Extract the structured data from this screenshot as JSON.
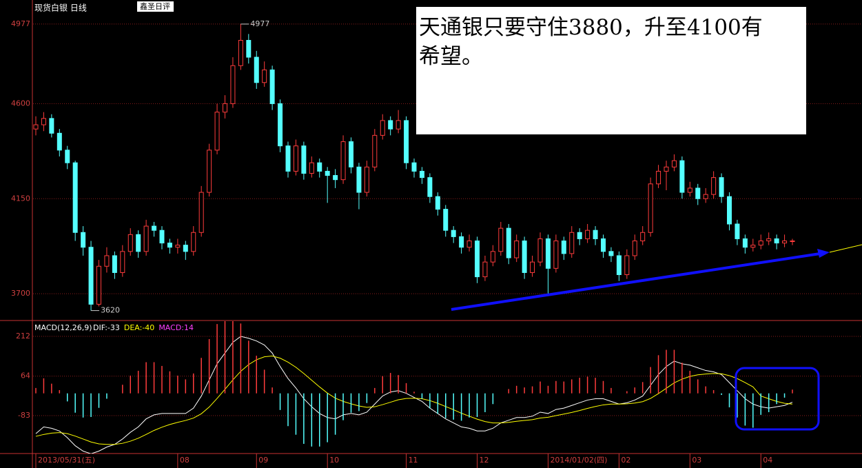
{
  "chart_data": {
    "type": "candlestick",
    "title": "现货白银  日线",
    "badge": "鑫圣日评",
    "note": [
      "天通银只要守住3880，升至4100有",
      "希望。"
    ],
    "categories": [
      "2013/05/31(五)",
      null,
      null,
      null,
      null,
      null,
      null,
      null,
      null,
      null,
      null,
      null,
      null,
      null,
      null,
      null,
      null,
      null,
      "08",
      null,
      null,
      null,
      null,
      null,
      null,
      null,
      null,
      null,
      "09",
      null,
      null,
      null,
      null,
      null,
      null,
      null,
      null,
      "10",
      null,
      null,
      null,
      null,
      null,
      null,
      null,
      null,
      null,
      "11",
      null,
      null,
      null,
      null,
      null,
      null,
      null,
      null,
      "12",
      null,
      null,
      null,
      null,
      null,
      null,
      null,
      null,
      "2014/01/02(四)",
      null,
      null,
      null,
      null,
      null,
      null,
      null,
      null,
      "02",
      null,
      null,
      null,
      null,
      null,
      null,
      null,
      null,
      "03",
      null,
      null,
      null,
      null,
      null,
      null,
      null,
      null,
      "04",
      null,
      null,
      null,
      null
    ],
    "ohlc": [
      [
        4480,
        4540,
        4450,
        4500
      ],
      [
        4500,
        4560,
        4470,
        4530
      ],
      [
        4530,
        4550,
        4440,
        4460
      ],
      [
        4460,
        4480,
        4350,
        4380
      ],
      [
        4380,
        4400,
        4290,
        4320
      ],
      [
        4320,
        4330,
        3950,
        3990
      ],
      [
        3990,
        4020,
        3880,
        3920
      ],
      [
        3920,
        3950,
        3620,
        3650
      ],
      [
        3650,
        3860,
        3640,
        3830
      ],
      [
        3830,
        3920,
        3800,
        3880
      ],
      [
        3880,
        3900,
        3770,
        3800
      ],
      [
        3800,
        3930,
        3780,
        3900
      ],
      [
        3900,
        4010,
        3880,
        3980
      ],
      [
        3980,
        4000,
        3870,
        3900
      ],
      [
        3900,
        4050,
        3880,
        4020
      ],
      [
        4020,
        4040,
        3970,
        4000
      ],
      [
        4000,
        4020,
        3910,
        3940
      ],
      [
        3940,
        3960,
        3890,
        3920
      ],
      [
        3920,
        3960,
        3890,
        3930
      ],
      [
        3930,
        3950,
        3860,
        3900
      ],
      [
        3900,
        4020,
        3880,
        3990
      ],
      [
        3990,
        4210,
        3970,
        4180
      ],
      [
        4180,
        4410,
        4160,
        4380
      ],
      [
        4380,
        4600,
        4360,
        4560
      ],
      [
        4560,
        4640,
        4530,
        4600
      ],
      [
        4600,
        4820,
        4580,
        4780
      ],
      [
        4780,
        4977,
        4760,
        4900
      ],
      [
        4900,
        4930,
        4790,
        4820
      ],
      [
        4820,
        4850,
        4670,
        4700
      ],
      [
        4700,
        4800,
        4680,
        4760
      ],
      [
        4760,
        4780,
        4570,
        4600
      ],
      [
        4600,
        4620,
        4370,
        4400
      ],
      [
        4400,
        4420,
        4250,
        4280
      ],
      [
        4280,
        4430,
        4260,
        4400
      ],
      [
        4400,
        4420,
        4240,
        4270
      ],
      [
        4270,
        4350,
        4250,
        4320
      ],
      [
        4320,
        4340,
        4250,
        4280
      ],
      [
        4280,
        4300,
        4130,
        4260
      ],
      [
        4260,
        4290,
        4200,
        4240
      ],
      [
        4240,
        4450,
        4220,
        4420
      ],
      [
        4420,
        4440,
        4270,
        4300
      ],
      [
        4300,
        4320,
        4100,
        4180
      ],
      [
        4180,
        4330,
        4160,
        4300
      ],
      [
        4300,
        4480,
        4280,
        4450
      ],
      [
        4450,
        4550,
        4430,
        4520
      ],
      [
        4520,
        4540,
        4450,
        4480
      ],
      [
        4480,
        4570,
        4460,
        4520
      ],
      [
        4520,
        4540,
        4290,
        4320
      ],
      [
        4320,
        4340,
        4250,
        4280
      ],
      [
        4280,
        4300,
        4220,
        4250
      ],
      [
        4250,
        4270,
        4130,
        4160
      ],
      [
        4160,
        4180,
        4070,
        4100
      ],
      [
        4100,
        4120,
        3970,
        4000
      ],
      [
        4000,
        4020,
        3940,
        3970
      ],
      [
        3970,
        3990,
        3890,
        3920
      ],
      [
        3920,
        3980,
        3900,
        3950
      ],
      [
        3950,
        3970,
        3750,
        3780
      ],
      [
        3780,
        3880,
        3760,
        3850
      ],
      [
        3850,
        3930,
        3830,
        3900
      ],
      [
        3900,
        4040,
        3880,
        4010
      ],
      [
        4010,
        4030,
        3840,
        3870
      ],
      [
        3870,
        3980,
        3850,
        3950
      ],
      [
        3950,
        3970,
        3770,
        3800
      ],
      [
        3800,
        3880,
        3780,
        3850
      ],
      [
        3850,
        3990,
        3830,
        3960
      ],
      [
        3960,
        3980,
        3700,
        3820
      ],
      [
        3820,
        3980,
        3800,
        3950
      ],
      [
        3950,
        3970,
        3860,
        3890
      ],
      [
        3890,
        4020,
        3870,
        3990
      ],
      [
        3990,
        4010,
        3930,
        3960
      ],
      [
        3960,
        4030,
        3940,
        4000
      ],
      [
        4000,
        4020,
        3930,
        3960
      ],
      [
        3960,
        3980,
        3870,
        3900
      ],
      [
        3900,
        3920,
        3850,
        3880
      ],
      [
        3880,
        3900,
        3760,
        3790
      ],
      [
        3790,
        3910,
        3770,
        3880
      ],
      [
        3880,
        3980,
        3860,
        3950
      ],
      [
        3950,
        4020,
        3930,
        3990
      ],
      [
        3990,
        4250,
        3970,
        4220
      ],
      [
        4220,
        4310,
        4200,
        4280
      ],
      [
        4280,
        4330,
        4190,
        4300
      ],
      [
        4300,
        4360,
        4280,
        4330
      ],
      [
        4330,
        4350,
        4150,
        4180
      ],
      [
        4180,
        4230,
        4160,
        4200
      ],
      [
        4200,
        4220,
        4120,
        4150
      ],
      [
        4150,
        4200,
        4130,
        4170
      ],
      [
        4170,
        4280,
        4150,
        4250
      ],
      [
        4250,
        4270,
        4130,
        4160
      ],
      [
        4160,
        4180,
        4000,
        4030
      ],
      [
        4030,
        4050,
        3930,
        3960
      ],
      [
        3960,
        3980,
        3890,
        3920
      ],
      [
        3920,
        3960,
        3900,
        3930
      ],
      [
        3930,
        3980,
        3910,
        3950
      ],
      [
        3950,
        3990,
        3930,
        3960
      ],
      [
        3960,
        3980,
        3910,
        3940
      ],
      [
        3940,
        3980,
        3920,
        3950
      ],
      [
        3950,
        3960,
        3930,
        3950
      ]
    ],
    "up_color": "#ff3c3c",
    "down_color": "#54ffff",
    "high_label": 4977,
    "low_label": 3620,
    "ylim": [
      3573,
      5091
    ],
    "yticks": [
      3700,
      4150,
      4600,
      4977
    ],
    "grid": true,
    "macd": {
      "title": "MACD(12,26,9)",
      "readout": [
        {
          "label": "DIF:-33",
          "value": -33,
          "color": "#ffffff"
        },
        {
          "label": "DEA:-40",
          "value": -40,
          "color": "#ffff00"
        },
        {
          "label": "MACD:14",
          "value": 14,
          "color": "#ff40ff"
        }
      ],
      "ylim": [
        -224,
        266
      ],
      "yticks": [
        -83,
        64,
        212
      ],
      "series": [
        {
          "name": "DIF",
          "color": "#ffffff",
          "values": [
            -150,
            -125,
            -130,
            -140,
            -165,
            -195,
            -215,
            -225,
            -215,
            -200,
            -190,
            -170,
            -145,
            -125,
            -95,
            -80,
            -75,
            -75,
            -75,
            -75,
            -55,
            -10,
            50,
            110,
            150,
            190,
            212,
            205,
            195,
            180,
            150,
            100,
            55,
            20,
            -20,
            -50,
            -75,
            -90,
            -95,
            -80,
            -75,
            -80,
            -70,
            -40,
            -10,
            5,
            10,
            0,
            -15,
            -30,
            -55,
            -75,
            -95,
            -110,
            -125,
            -130,
            -140,
            -140,
            -130,
            -110,
            -100,
            -90,
            -90,
            -85,
            -70,
            -75,
            -60,
            -55,
            -45,
            -35,
            -25,
            -20,
            -20,
            -30,
            -40,
            -35,
            -25,
            -10,
            30,
            70,
            100,
            120,
            110,
            105,
            95,
            85,
            80,
            70,
            40,
            10,
            -20,
            -40,
            -50,
            -55,
            -50,
            -45,
            -33
          ]
        },
        {
          "name": "DEA",
          "color": "#ffff00",
          "values": [
            -160,
            -153,
            -148,
            -146,
            -150,
            -159,
            -170,
            -181,
            -188,
            -190,
            -190,
            -186,
            -178,
            -167,
            -153,
            -138,
            -126,
            -116,
            -108,
            -101,
            -92,
            -76,
            -51,
            -19,
            15,
            50,
            82,
            107,
            125,
            136,
            139,
            131,
            116,
            97,
            74,
            49,
            24,
            1,
            -18,
            -30,
            -39,
            -47,
            -52,
            -50,
            -42,
            -33,
            -24,
            -19,
            -18,
            -20,
            -27,
            -37,
            -49,
            -61,
            -74,
            -85,
            -96,
            -105,
            -110,
            -110,
            -108,
            -104,
            -101,
            -98,
            -92,
            -89,
            -83,
            -77,
            -71,
            -64,
            -56,
            -49,
            -43,
            -40,
            -40,
            -39,
            -36,
            -31,
            -19,
            -1,
            19,
            39,
            53,
            63,
            69,
            72,
            74,
            73,
            66,
            55,
            40,
            24,
            -10,
            -20,
            -30,
            -37,
            -40
          ]
        },
        {
          "name": "MACD",
          "up_color": "#ff3c3c",
          "down_color": "#54ffff",
          "values": [
            20,
            56,
            36,
            12,
            -30,
            -72,
            -90,
            -88,
            -54,
            -20,
            0,
            32,
            66,
            84,
            116,
            116,
            102,
            82,
            66,
            52,
            74,
            132,
            202,
            258,
            270,
            280,
            260,
            196,
            140,
            88,
            22,
            -62,
            -122,
            -154,
            -188,
            -198,
            -198,
            -182,
            -154,
            -100,
            -72,
            -66,
            -36,
            20,
            64,
            76,
            68,
            38,
            6,
            -20,
            -56,
            -76,
            -92,
            -98,
            -102,
            -90,
            -88,
            -70,
            -40,
            0,
            16,
            28,
            22,
            26,
            44,
            28,
            46,
            44,
            52,
            58,
            62,
            58,
            46,
            20,
            0,
            8,
            22,
            42,
            98,
            142,
            162,
            162,
            114,
            84,
            52,
            26,
            12,
            -6,
            -52,
            -90,
            -120,
            -128,
            -80,
            -70,
            -40,
            -16,
            14
          ]
        }
      ]
    }
  }
}
